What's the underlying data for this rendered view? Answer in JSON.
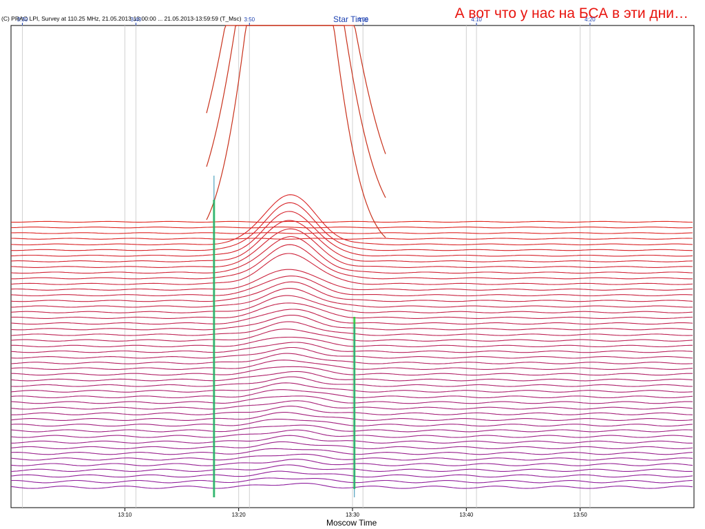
{
  "header": {
    "copyright": "(C) PRAO LPI, Survey at 110.25 MHz, 21.05.2013-13:00:00 ... 21.05.2013-13:59:59 (T_Msc)",
    "top_axis_label": "Star Time",
    "headline": "А вот что у нас на БСА в эти дни…"
  },
  "footer": {
    "bottom_axis_label": "Moscow Time"
  },
  "chart_data": {
    "type": "line",
    "title": "",
    "xlabel": "Moscow Time",
    "x2label": "Star Time",
    "xlim": [
      "13:00",
      "14:00"
    ],
    "grid": true,
    "legend": "none",
    "bottom_ticks": [
      "13:10",
      "13:20",
      "13:30",
      "13:40",
      "13:50"
    ],
    "top_ticks": [
      "3:30",
      "3:40",
      "3:50",
      "4:00",
      "4:10",
      "4:20"
    ],
    "n_traces": 48,
    "color_top": "#e0231a",
    "color_bottom": "#8e1f9e",
    "burst_color": "#22cc33",
    "interference_times": [
      "13:17:50",
      "13:30:10"
    ],
    "source_transit": {
      "center": "13:24:30",
      "width_min": 3.2
    }
  }
}
